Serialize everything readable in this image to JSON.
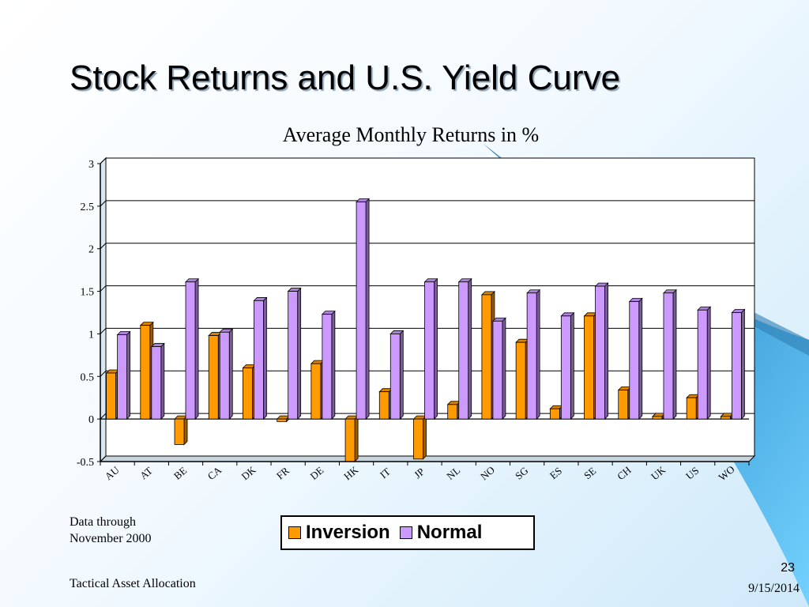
{
  "slide": {
    "title": "Stock Returns and U.S. Yield Curve",
    "note_lines": [
      "Data through",
      "November 2000"
    ],
    "footer_text": "Tactical Asset Allocation",
    "page_number": "23",
    "date": "9/15/2014",
    "colors": {
      "inversion": "#ff9a00",
      "normal": "#cc99ff",
      "accent_swoosh": "#5bc0f2"
    }
  },
  "chart_data": {
    "type": "bar",
    "title": "Average Monthly Returns in %",
    "categories": [
      "AU",
      "AT",
      "BE",
      "CA",
      "DK",
      "FR",
      "DE",
      "HK",
      "IT",
      "JP",
      "NL",
      "NO",
      "SG",
      "ES",
      "SE",
      "CH",
      "UK",
      "US",
      "WO"
    ],
    "series": [
      {
        "name": "Inversion",
        "color": "#ff9a00",
        "values": [
          0.54,
          1.1,
          -0.3,
          0.98,
          0.6,
          -0.03,
          0.65,
          -0.5,
          0.32,
          -0.47,
          0.17,
          1.46,
          0.9,
          0.12,
          1.21,
          0.34,
          0.03,
          0.25,
          0.03
        ]
      },
      {
        "name": "Normal",
        "color": "#cc99ff",
        "values": [
          0.99,
          0.85,
          1.61,
          1.02,
          1.39,
          1.5,
          1.23,
          2.55,
          1.0,
          1.61,
          1.61,
          1.15,
          1.48,
          1.21,
          1.56,
          1.38,
          1.48,
          1.28,
          1.25
        ]
      }
    ],
    "yticks": [
      "3",
      "2.5",
      "2",
      "1.5",
      "1",
      "0.5",
      "0",
      "-0.5"
    ],
    "ylim": [
      -0.5,
      3
    ],
    "grid": true,
    "legend_position": "bottom"
  }
}
